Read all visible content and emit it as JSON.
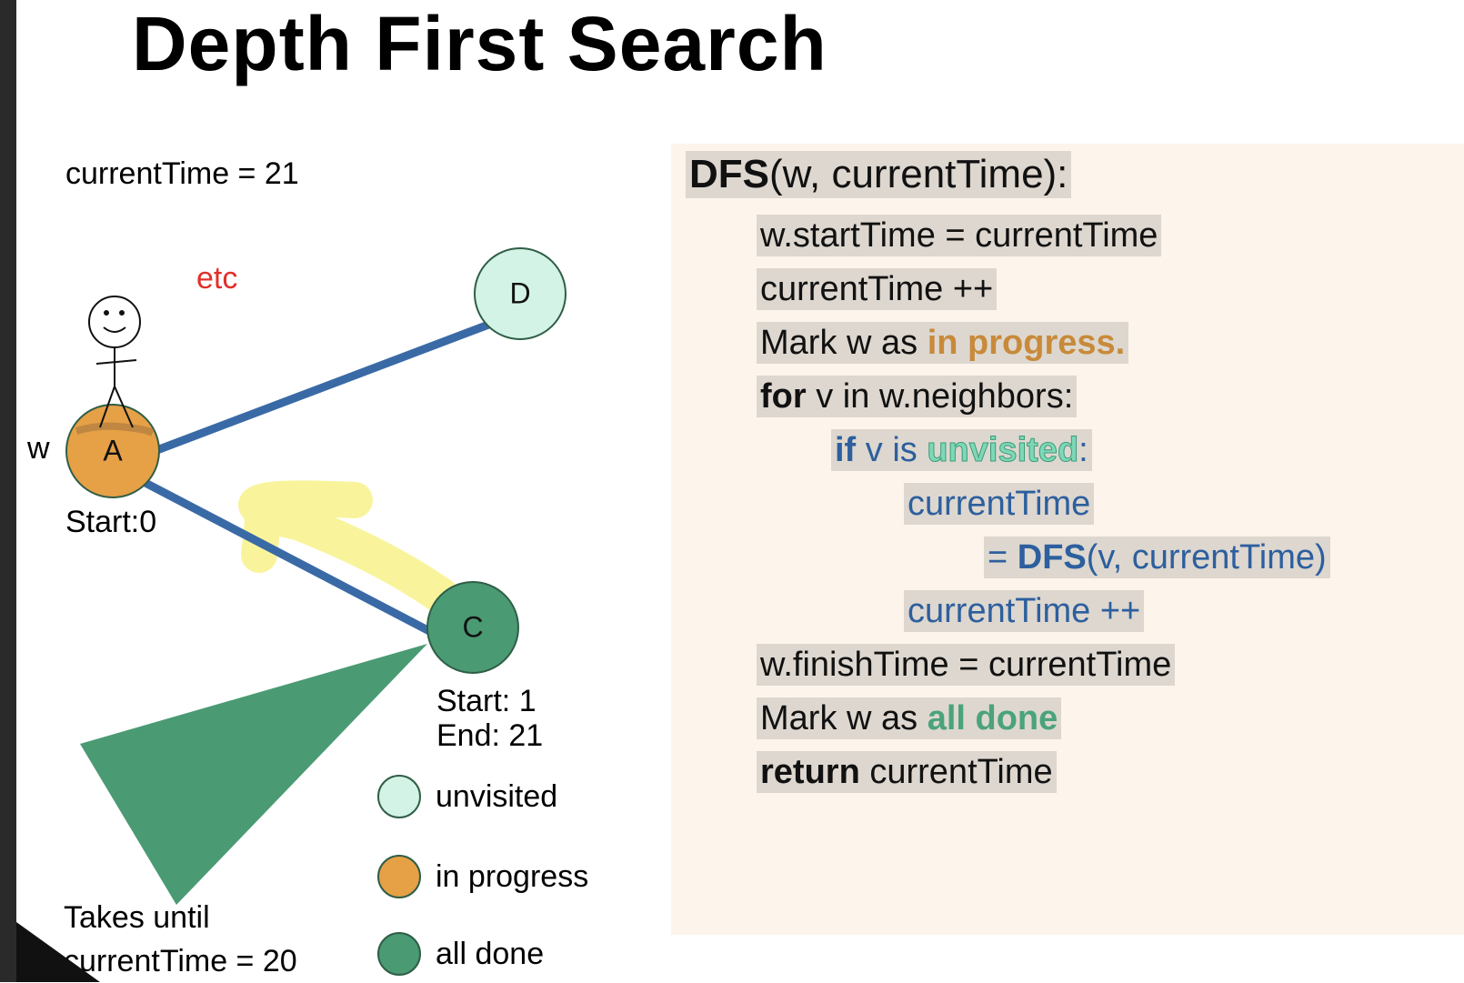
{
  "title": "Depth First Search",
  "state": {
    "current_time_label": "currentTime = 21",
    "etc": "etc",
    "w_label": "w",
    "start_a": "Start:0",
    "start_c_line1": "Start: 1",
    "start_c_line2": "End: 21",
    "takes_until_line1": "Takes until",
    "takes_until_line2": "currentTime = 20"
  },
  "nodes": {
    "a": "A",
    "c": "C",
    "d": "D"
  },
  "legend": {
    "unvisited": "unvisited",
    "in_progress": "in progress",
    "all_done": "all done"
  },
  "colors": {
    "unvisited": "#d3f3e6",
    "in_progress": "#e6a046",
    "all_done": "#4a9a74",
    "edge": "#3a6aa6",
    "highlight": "#f8f28a",
    "etc_red": "#e0302a",
    "code_bg": "#fdf5eb"
  },
  "code": {
    "header_fn": "DFS",
    "header_args": "(w, currentTime):",
    "l1": "w.startTime = currentTime",
    "l2": "currentTime ++",
    "l3_pre": "Mark w as ",
    "l3_highlight": "in progress.",
    "l4_kw": "for",
    "l4_rest": " v in w.neighbors:",
    "l5_kw": "if",
    "l5_mid": " v is ",
    "l5_highlight": "unvisited",
    "l5_end": ":",
    "l6": "currentTime",
    "l7_pre": "= ",
    "l7_fn": "DFS",
    "l7_args": "(v, currentTime)",
    "l8": "currentTime ++",
    "l9": "w.finishTime = currentTime",
    "l10_pre": "Mark w as ",
    "l10_highlight": "all done",
    "l11_kw": "return",
    "l11_rest": " currentTime"
  }
}
